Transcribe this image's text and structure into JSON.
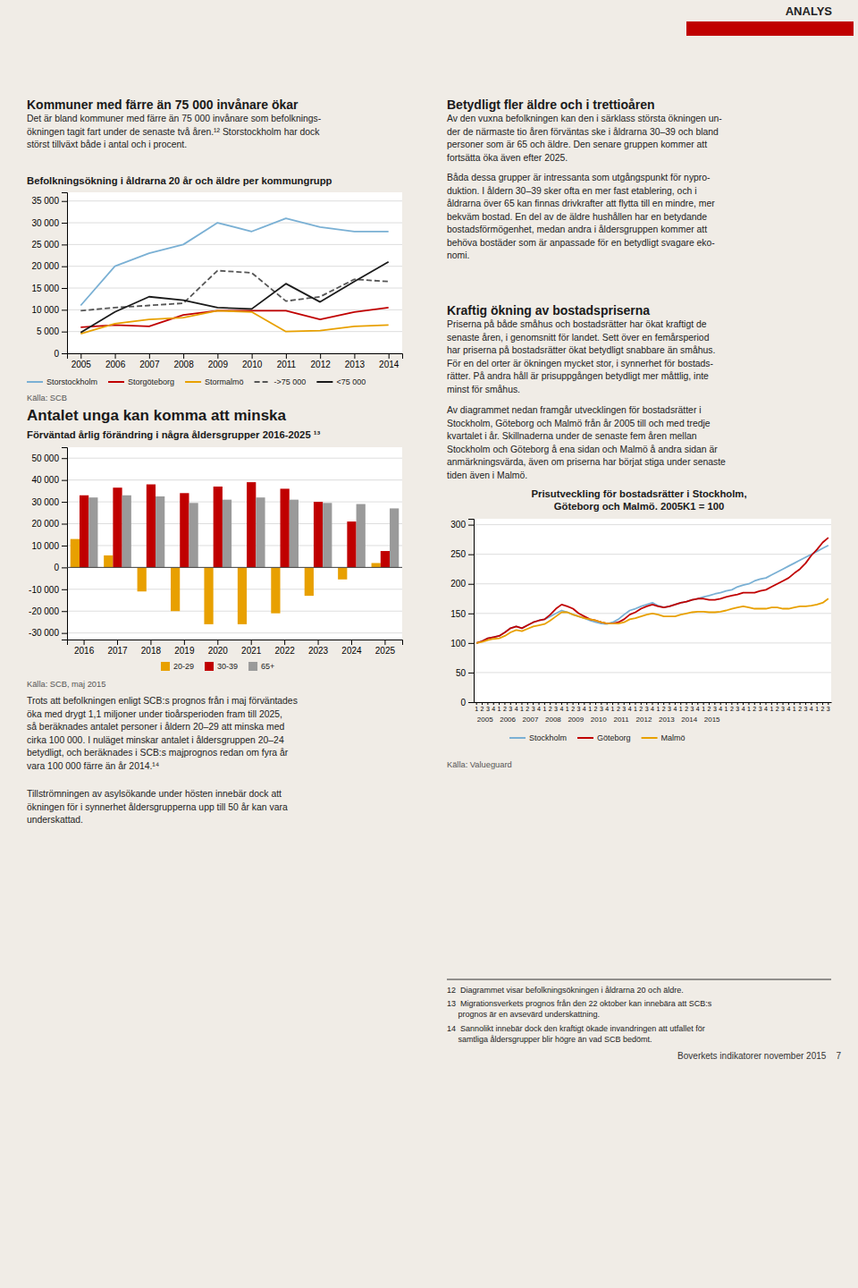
{
  "page_bg": "#f0ece6",
  "chart_bg": "#ffffff",
  "header": {
    "text": "ANALYS",
    "color": "#c00000"
  },
  "left_column": {
    "title1": "Kommuner med färre än 75 000 invånare ökar",
    "body1": [
      "Det är bland kommuner med färre än 75 000 invånare som befolknings-",
      "ökningen tagit fart under de senaste två åren.¹² Storstockholm har dock",
      "störst tillväxt både i antal och i procent."
    ],
    "title2": "Antalet unga kan komma att minska",
    "body2": [
      "Trots att befolkningen enligt SCB:s prognos från i maj förväntades",
      "öka med drygt 1,1 miljoner under tioårsperioden fram till 2025,",
      "så beräknades antalet personer i åldern 20–29 att minska med",
      "cirka 100 000. I nuläget minskar antalet i åldersgruppen 20–24",
      "betydligt, och beräknades i SCB:s majprognos redan om fyra år",
      "vara 100 000 färre än år 2014.¹⁴"
    ],
    "body3": [
      "Tillströmningen av asylsökande under hösten innebär dock att",
      "ökningen för i synnerhet åldersgrupperna upp till 50 år kan vara",
      "underskattad."
    ]
  },
  "right_column": {
    "title1": "Betydligt fler äldre och i trettioåren",
    "body1": [
      "Av den vuxna befolkningen kan den i särklass största ökningen un-",
      "der de närmaste tio åren förväntas ske i åldrarna 30–39 och bland",
      "personer som är 65 och äldre. Den senare gruppen kommer att",
      "fortsätta öka även efter 2025."
    ],
    "body2": [
      "Båda dessa grupper är intressanta som utgångspunkt för nypro-",
      "duktion. I åldern 30–39 sker ofta en mer fast etablering, och i",
      "åldrarna över 65 kan finnas drivkrafter att flytta till en mindre, mer",
      "bekväm bostad. En del av de äldre hushållen har en betydande",
      "bostadsförmögenhet, medan andra i åldersgruppen kommer att",
      "behöva bostäder som är anpassade för en betydligt svagare eko-",
      "nomi."
    ],
    "title2": "Kraftig ökning av bostadspriserna",
    "body3": [
      "Priserna på både småhus och bostadsrätter har ökat kraftigt de",
      "senaste åren, i genomsnitt för landet. Sett över en femårsperiod",
      "har priserna på bostadsrätter ökat betydligt snabbare än småhus.",
      "För en del orter är ökningen mycket stor, i synnerhet för bostads-",
      "rätter. På andra håll är prisuppgången betydligt mer måttlig, inte",
      "minst för småhus."
    ],
    "body4": [
      "Av diagrammet nedan framgår utvecklingen för bostadsrätter i",
      "Stockholm, Göteborg och Malmö från år 2005 till och med tredje",
      "kvartalet i år. Skillnaderna under de senaste fem åren mellan",
      "Stockholm och Göteborg å ena sidan och Malmö å andra sidan är",
      "anmärkningsvärda, även om priserna har börjat stiga under senaste",
      "tiden även i Malmö."
    ]
  },
  "chart_data": [
    {
      "type": "line",
      "title": "Befolkningsökning i åldrarna 20 år och äldre per kommungrupp",
      "x": [
        2005,
        2006,
        2007,
        2008,
        2009,
        2010,
        2011,
        2012,
        2013,
        2014
      ],
      "xlim": [
        2004.6,
        2014.4
      ],
      "xticks": [
        2005,
        2006,
        2007,
        2008,
        2009,
        2010,
        2011,
        2012,
        2013,
        2014
      ],
      "ylim": [
        0,
        37000
      ],
      "yticks": [
        0,
        {
          "value": 5000,
          "label": "5 000"
        },
        {
          "value": 10000,
          "label": "10 000"
        },
        {
          "value": 15000,
          "label": "15 000"
        },
        {
          "value": 20000,
          "label": "20 000"
        },
        {
          "value": 25000,
          "label": "25 000"
        },
        {
          "value": 30000,
          "label": "30 000"
        },
        {
          "value": 35000,
          "label": "35 000"
        }
      ],
      "grid": true,
      "legend": "bottom",
      "source": "Källa: SCB",
      "series": [
        {
          "name": "Storstockholm",
          "color": "#7ab0d4",
          "values": [
            11000,
            20000,
            23000,
            25000,
            30000,
            28000,
            31000,
            29000,
            28000,
            28000
          ]
        },
        {
          "name": "Storgöteborg",
          "color": "#c00000",
          "values": [
            6000,
            6500,
            6200,
            8800,
            9800,
            9800,
            9800,
            7800,
            9500,
            10500
          ]
        },
        {
          "name": "Stormalmö",
          "color": "#e8a000",
          "values": [
            4500,
            6800,
            7800,
            8200,
            9800,
            9500,
            5000,
            5200,
            6200,
            6500
          ]
        },
        {
          "name": "->75 000",
          "color": "#555555",
          "line_style": "dashed",
          "values": [
            9800,
            10500,
            11000,
            11500,
            19000,
            18500,
            12000,
            13000,
            17000,
            16500
          ]
        },
        {
          "name": "<75 000",
          "color": "#1a1a1a",
          "values": [
            4800,
            9500,
            13000,
            12200,
            10500,
            10200,
            16000,
            11800,
            16500,
            21000
          ]
        }
      ]
    },
    {
      "type": "bar",
      "title": "Förväntad årlig förändring i några åldersgrupper 2016-2025 ¹³",
      "categories": [
        "2016",
        "2017",
        "2018",
        "2019",
        "2020",
        "2021",
        "2022",
        "2023",
        "2024",
        "2025"
      ],
      "ylim": [
        -33000,
        55000
      ],
      "yticks": [
        {
          "value": -30000,
          "label": "-30 000"
        },
        {
          "value": -20000,
          "label": "-20 000"
        },
        {
          "value": -10000,
          "label": "-10 000"
        },
        0,
        {
          "value": 10000,
          "label": "10 000"
        },
        {
          "value": 20000,
          "label": "20 000"
        },
        {
          "value": 30000,
          "label": "30 000"
        },
        {
          "value": 40000,
          "label": "40 000"
        },
        {
          "value": 50000,
          "label": "50 000"
        }
      ],
      "grid": true,
      "legend": "bottom",
      "source": "Källa: SCB, maj 2015",
      "series": [
        {
          "name": "20-29",
          "color": "#e8a000",
          "values": [
            13000,
            5500,
            -11000,
            -20000,
            -26000,
            -26000,
            -21000,
            -13000,
            -5500,
            2000
          ]
        },
        {
          "name": "30-39",
          "color": "#c00000",
          "values": [
            33000,
            36500,
            38000,
            34000,
            37000,
            39000,
            36000,
            30000,
            21000,
            7500
          ]
        },
        {
          "name": "65+",
          "color": "#9a9a9a",
          "values": [
            32000,
            33000,
            32500,
            29500,
            31000,
            32000,
            31000,
            29500,
            29000,
            27000
          ]
        }
      ]
    },
    {
      "type": "line",
      "title": "Prisutveckling för bostadsrätter i Stockholm,",
      "subtitle": "Göteborg och Malmö. 2005K1 = 100",
      "categories": [
        "1",
        "2",
        "3",
        "4",
        "1",
        "2",
        "3",
        "4",
        "1",
        "2",
        "3",
        "4",
        "1",
        "2",
        "3",
        "4",
        "1",
        "2",
        "3",
        "4",
        "1",
        "2",
        "3",
        "4",
        "1",
        "2",
        "3",
        "4",
        "1",
        "2",
        "3",
        "4",
        "1",
        "2",
        "3",
        "4",
        "1",
        "2",
        "3",
        "4",
        "1",
        "2",
        "3",
        "4",
        "1",
        "2",
        "3",
        "4",
        "1",
        "2",
        "3",
        "4",
        "1",
        "2",
        "3",
        "4",
        "1",
        "2",
        "3",
        "4",
        "1",
        "2",
        "3"
      ],
      "year_labels": [
        2005,
        2006,
        2007,
        2008,
        2009,
        2010,
        2011,
        2012,
        2013,
        2014,
        2015
      ],
      "ylim": [
        0,
        310
      ],
      "yticks": [
        0,
        50,
        100,
        150,
        200,
        250,
        300
      ],
      "grid": true,
      "legend": "bottom",
      "source": "Källa: Valueguard",
      "series": [
        {
          "name": "Stockholm",
          "color": "#7ab0d4",
          "values": [
            100,
            103,
            108,
            110,
            112,
            118,
            125,
            128,
            125,
            130,
            135,
            138,
            140,
            145,
            150,
            155,
            152,
            148,
            145,
            142,
            138,
            135,
            133,
            132,
            135,
            140,
            148,
            155,
            158,
            162,
            165,
            168,
            163,
            160,
            162,
            165,
            168,
            170,
            173,
            175,
            178,
            180,
            183,
            185,
            188,
            190,
            195,
            198,
            200,
            205,
            208,
            210,
            215,
            220,
            225,
            230,
            235,
            240,
            245,
            250,
            255,
            260,
            265
          ]
        },
        {
          "name": "Göteborg",
          "color": "#c00000",
          "values": [
            100,
            103,
            108,
            110,
            112,
            118,
            125,
            128,
            125,
            130,
            135,
            138,
            140,
            148,
            158,
            165,
            162,
            158,
            150,
            145,
            140,
            138,
            135,
            133,
            133,
            135,
            140,
            148,
            152,
            158,
            162,
            165,
            162,
            160,
            162,
            165,
            168,
            170,
            173,
            175,
            175,
            173,
            173,
            175,
            178,
            180,
            182,
            185,
            185,
            185,
            188,
            190,
            195,
            200,
            205,
            210,
            218,
            225,
            235,
            248,
            258,
            270,
            278
          ]
        },
        {
          "name": "Malmö",
          "color": "#e8a000",
          "values": [
            100,
            102,
            105,
            107,
            108,
            112,
            118,
            122,
            120,
            124,
            128,
            130,
            132,
            138,
            145,
            152,
            152,
            148,
            145,
            142,
            140,
            138,
            135,
            133,
            133,
            133,
            135,
            140,
            142,
            145,
            148,
            150,
            148,
            145,
            145,
            145,
            148,
            150,
            152,
            153,
            153,
            152,
            152,
            153,
            155,
            158,
            160,
            162,
            160,
            158,
            158,
            158,
            160,
            160,
            158,
            158,
            160,
            162,
            162,
            163,
            165,
            168,
            175
          ]
        }
      ]
    }
  ],
  "footnotes": [
    [
      "12  Diagrammet visar befolkningsökningen i åldrarna 20 och äldre."
    ],
    [
      "13  Migrationsverkets prognos från den 22 oktober kan innebära att SCB:s",
      "     prognos är en avsevärd underskattning."
    ],
    [
      "14  Sannolikt innebär dock den kraftigt ökade invandringen att utfallet för",
      "     samtliga åldersgrupper blir högre än vad SCB bedömt."
    ]
  ],
  "footer_brand": "Boverkets indikatorer november 2015    7"
}
